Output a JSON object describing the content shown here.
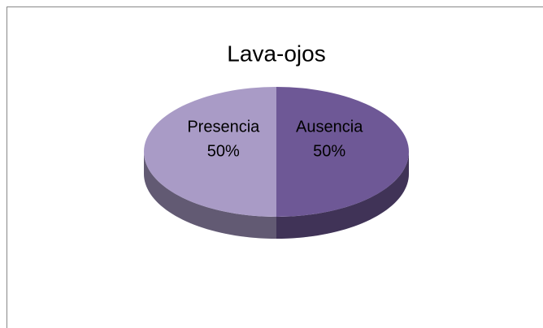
{
  "chart_data": {
    "type": "pie",
    "title": "Lava-ojos",
    "categories": [
      "Ausencia",
      "Presencia"
    ],
    "values": [
      50,
      50
    ],
    "value_labels": [
      "50%",
      "50%"
    ],
    "colors": [
      "#6e5896",
      "#a99bc6"
    ]
  }
}
